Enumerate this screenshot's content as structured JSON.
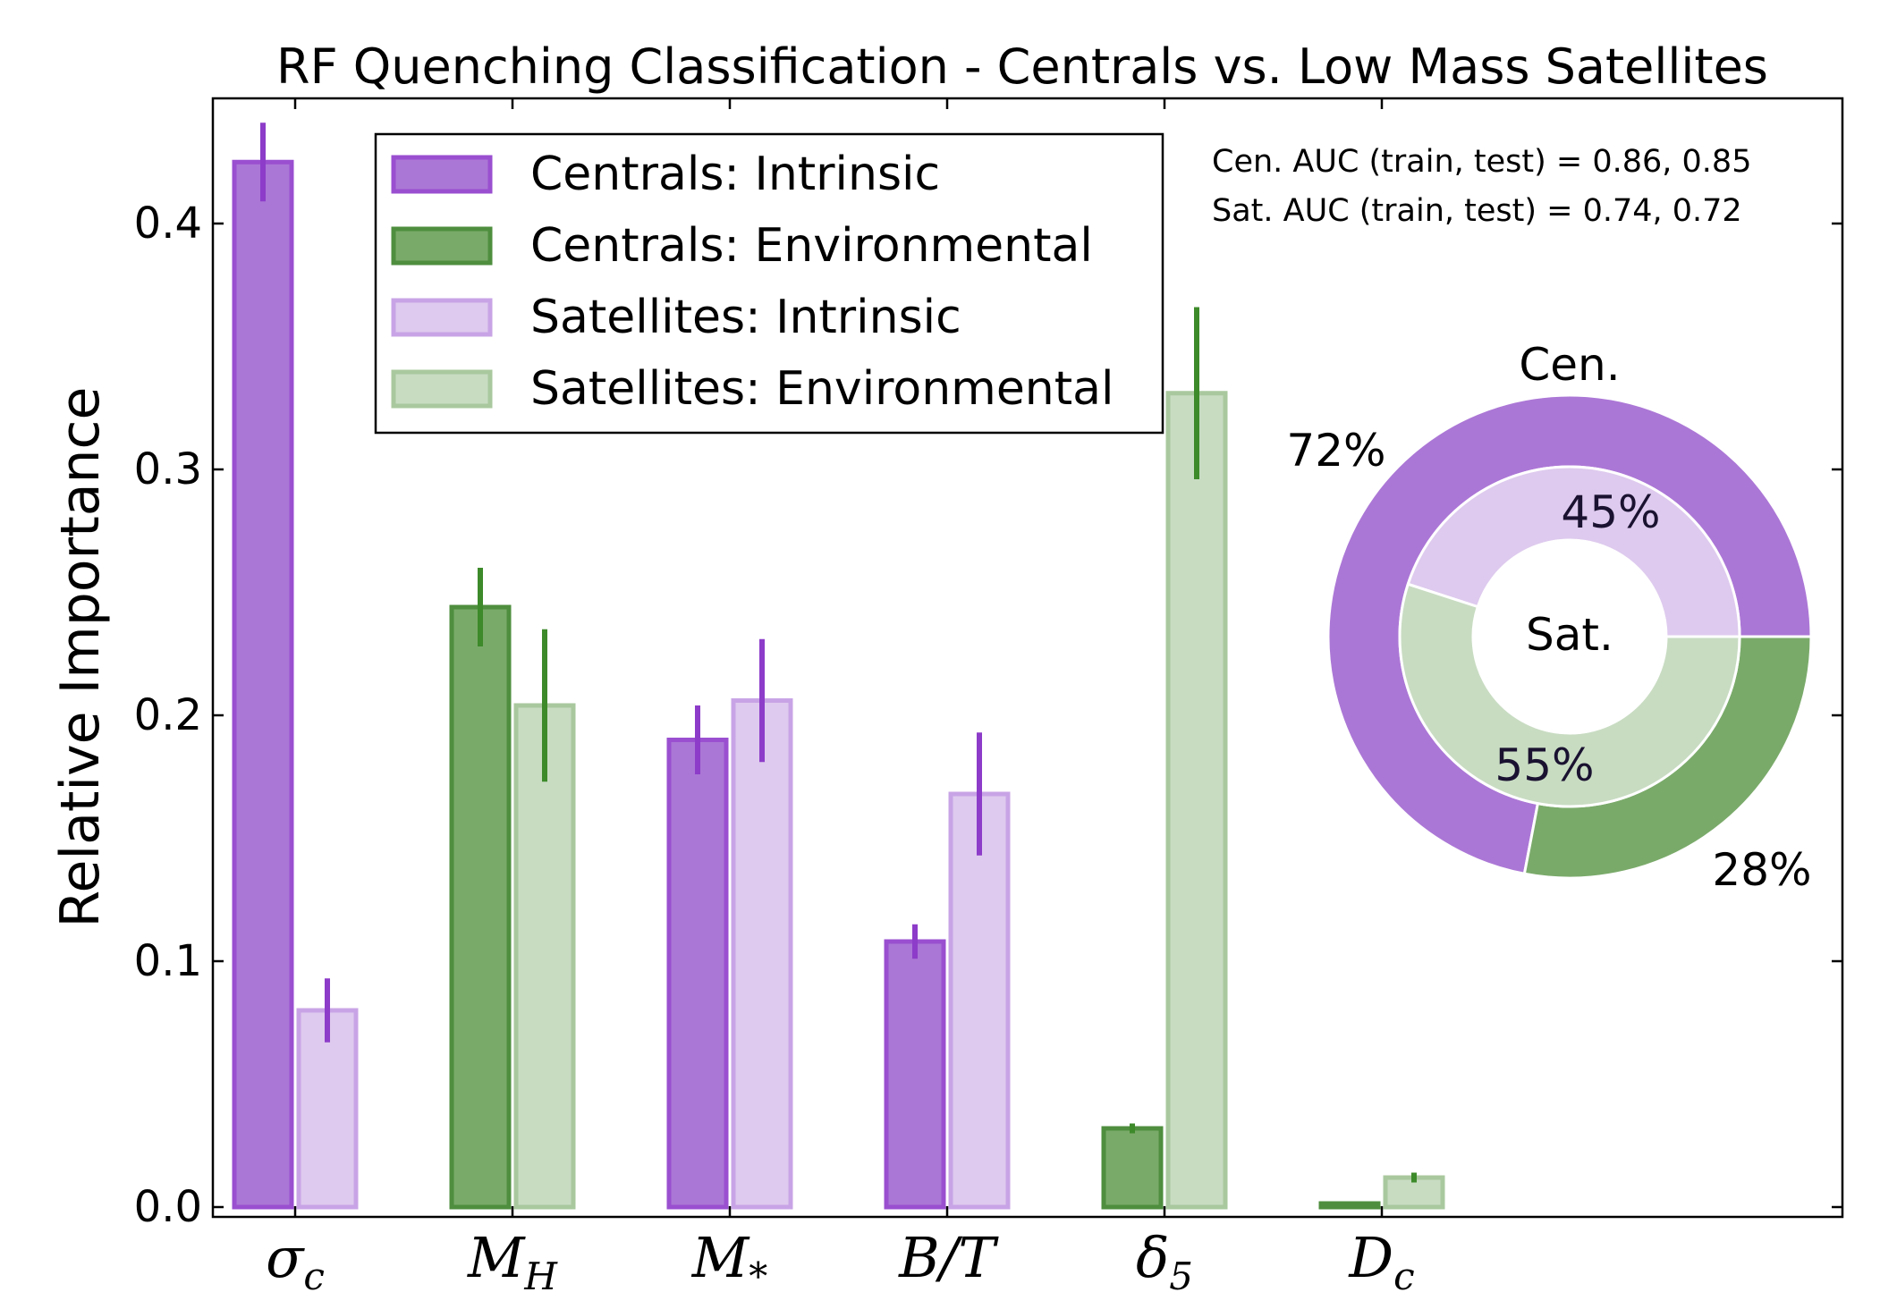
{
  "chart_data": {
    "type": "bar",
    "title": "RF Quenching Classification - Centrals vs. Low Mass Satellites",
    "ylabel": "Relative Importance",
    "xlabel": "",
    "ylim": [
      0.0,
      0.45
    ],
    "yticks": [
      "0.0",
      "0.1",
      "0.2",
      "0.3",
      "0.4"
    ],
    "categories": [
      {
        "base": "σ",
        "sub": "c"
      },
      {
        "base": "M",
        "sub": "H"
      },
      {
        "base": "M",
        "sub": "*"
      },
      {
        "base": "B/T",
        "sub": ""
      },
      {
        "base": "δ",
        "sub": "5"
      },
      {
        "base": "D",
        "sub": "c"
      }
    ],
    "series": [
      {
        "key": "cen",
        "label": "Centrals",
        "values": [
          0.425,
          0.244,
          0.19,
          0.108,
          0.032,
          0.001
        ],
        "errors": [
          0.016,
          0.016,
          0.014,
          0.007,
          0.002,
          0.0
        ],
        "types": [
          "intrinsic",
          "environmental",
          "intrinsic",
          "intrinsic",
          "environmental",
          "environmental"
        ]
      },
      {
        "key": "sat",
        "label": "Satellites",
        "values": [
          0.08,
          0.204,
          0.206,
          0.168,
          0.331,
          0.012
        ],
        "errors": [
          0.013,
          0.031,
          0.025,
          0.025,
          0.035,
          0.002
        ],
        "types": [
          "intrinsic",
          "environmental",
          "intrinsic",
          "intrinsic",
          "environmental",
          "environmental"
        ]
      }
    ],
    "legend": {
      "placement": "top-left",
      "entries": [
        {
          "label": "Centrals: Intrinsic",
          "style": "cen_intrinsic"
        },
        {
          "label": "Centrals: Environmental",
          "style": "cen_environmental"
        },
        {
          "label": "Satellites: Intrinsic",
          "style": "sat_intrinsic"
        },
        {
          "label": "Satellites: Environmental",
          "style": "sat_environmental"
        }
      ]
    },
    "annotations": [
      "Cen. AUC (train, test) = 0.86, 0.85",
      "Sat. AUC (train, test) = 0.74, 0.72"
    ],
    "inset_pie": {
      "type": "donut",
      "outer": {
        "name": "Cen.",
        "slices": [
          {
            "label": "72%",
            "value": 72,
            "style": "cen_intrinsic"
          },
          {
            "label": "28%",
            "value": 28,
            "style": "cen_environmental"
          }
        ]
      },
      "inner": {
        "name": "Sat.",
        "slices": [
          {
            "label": "45%",
            "value": 45,
            "style": "sat_intrinsic"
          },
          {
            "label": "55%",
            "value": 55,
            "style": "sat_environmental"
          }
        ]
      }
    },
    "grid": false
  },
  "colors": {
    "cen_intrinsic": {
      "fill": "#ab77d6",
      "edge": "#9a4fd0"
    },
    "cen_environmental": {
      "fill": "#7aaa6a",
      "edge": "#4e8e3e"
    },
    "sat_intrinsic": {
      "fill": "#decaee",
      "edge": "#c8a4e6"
    },
    "sat_environmental": {
      "fill": "#c8dcc2",
      "edge": "#a9c89e"
    },
    "err_intrinsic": "#8d3cc9",
    "err_environmental": "#3d8a2a",
    "axis": "#000000"
  }
}
